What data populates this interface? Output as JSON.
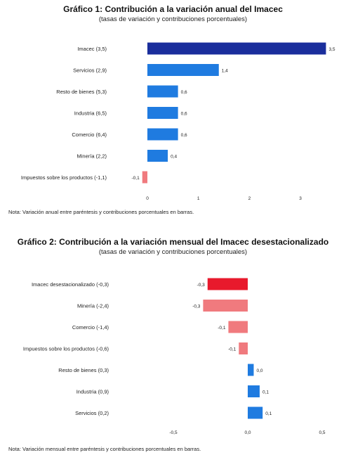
{
  "chart1": {
    "title": "Gráfico 1: Contribución a la variación anual del Imacec",
    "subtitle": "(tasas de variación y contribuciones porcentuales)",
    "note": "Nota: Variación anual entre paréntesis y contribuciones porcentuales en barras.",
    "colors": {
      "highlight": "#1a2e9c",
      "positive": "#1f7be0",
      "negative": "#f07a7e"
    }
  },
  "chart2": {
    "title": "Gráfico 2: Contribución a la variación mensual del Imacec desestacionalizado",
    "subtitle": "(tasas de variación y contribuciones porcentuales)",
    "note": "Nota: Variación mensual entre paréntesis y contribuciones porcentuales en barras.",
    "colors": {
      "highlight": "#e8192c",
      "positive": "#1f7be0",
      "negative": "#f07a7e"
    }
  },
  "chart_data": [
    {
      "type": "bar",
      "orientation": "horizontal",
      "title": "Gráfico 1: Contribución a la variación anual del Imacec",
      "subtitle": "(tasas de variación y contribuciones porcentuales)",
      "categories": [
        "Imacec (3,5)",
        "Servicios (2,9)",
        "Resto de bienes (5,3)",
        "Industria (6,5)",
        "Comercio (6,4)",
        "Minería (2,2)",
        "Impuestos sobre los productos (-1,1)"
      ],
      "values": [
        3.5,
        1.4,
        0.6,
        0.6,
        0.6,
        0.4,
        -0.1
      ],
      "value_labels": [
        "3,5",
        "1,4",
        "0,6",
        "0,6",
        "0,6",
        "0,4",
        "-0,1"
      ],
      "highlight_index": 0,
      "xlim": [
        -0.12,
        3.5
      ],
      "xticks": [
        0,
        1,
        2,
        3
      ],
      "xtick_labels": [
        "0",
        "1",
        "2",
        "3"
      ],
      "grid": false
    },
    {
      "type": "bar",
      "orientation": "horizontal",
      "title": "Gráfico 2: Contribución a la variación mensual del Imacec desestacionalizado",
      "subtitle": "(tasas de variación y contribuciones porcentuales)",
      "categories": [
        "Imacec desestacionalizado (-0,3)",
        "Minería (-2,4)",
        "Comercio (-1,4)",
        "Impuestos sobre los productos (-0,6)",
        "Resto de bienes (0,3)",
        "Industria (0,9)",
        "Servicios (0,2)"
      ],
      "values": [
        -0.27,
        -0.3,
        -0.13,
        -0.06,
        0.04,
        0.08,
        0.1
      ],
      "value_labels": [
        "-0,3",
        "-0,3",
        "-0,1",
        "-0,1",
        "0,0",
        "0,1",
        "0,1"
      ],
      "highlight_index": 0,
      "xlim": [
        -0.5,
        0.5
      ],
      "xticks": [
        -0.5,
        0,
        0.5
      ],
      "xtick_labels": [
        "-0,5",
        "0,0",
        "0,5"
      ],
      "grid": false
    }
  ]
}
